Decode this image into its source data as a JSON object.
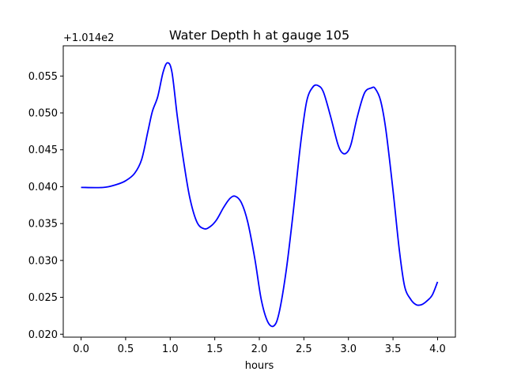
{
  "chart_data": {
    "type": "line",
    "title": "Water Depth h at gauge 105",
    "xlabel": "hours",
    "ylabel": "",
    "y_offset_label": "+1.014e2",
    "xlim": [
      -0.2,
      4.2
    ],
    "ylim": [
      0.0196,
      0.0591
    ],
    "x_ticks": [
      0.0,
      0.5,
      1.0,
      1.5,
      2.0,
      2.5,
      3.0,
      3.5,
      4.0
    ],
    "x_tick_labels": [
      "0.0",
      "0.5",
      "1.0",
      "1.5",
      "2.0",
      "2.5",
      "3.0",
      "3.5",
      "4.0"
    ],
    "y_ticks": [
      0.02,
      0.025,
      0.03,
      0.035,
      0.04,
      0.045,
      0.05,
      0.055
    ],
    "y_tick_labels": [
      "0.020",
      "0.025",
      "0.030",
      "0.035",
      "0.040",
      "0.045",
      "0.050",
      "0.055"
    ],
    "grid": false,
    "series": [
      {
        "color": "#0000ff",
        "x": [
          0.0,
          0.25,
          0.4,
          0.5,
          0.6,
          0.68,
          0.75,
          0.8,
          0.86,
          0.92,
          0.97,
          1.02,
          1.08,
          1.15,
          1.22,
          1.3,
          1.38,
          1.45,
          1.52,
          1.6,
          1.67,
          1.73,
          1.8,
          1.87,
          1.95,
          2.02,
          2.09,
          2.16,
          2.22,
          2.3,
          2.38,
          2.46,
          2.53,
          2.6,
          2.66,
          2.72,
          2.8,
          2.88,
          2.93,
          2.98,
          3.03,
          3.1,
          3.18,
          3.26,
          3.3,
          3.36,
          3.42,
          3.5,
          3.57,
          3.63,
          3.7,
          3.76,
          3.82,
          3.88,
          3.94,
          4.0
        ],
        "y": [
          0.0399,
          0.0399,
          0.0403,
          0.0408,
          0.0418,
          0.0437,
          0.0475,
          0.0502,
          0.0522,
          0.0555,
          0.0568,
          0.0555,
          0.0495,
          0.0435,
          0.0385,
          0.0352,
          0.0343,
          0.0346,
          0.0355,
          0.0372,
          0.0384,
          0.0387,
          0.0378,
          0.0352,
          0.0302,
          0.0248,
          0.0218,
          0.0211,
          0.0228,
          0.0285,
          0.0365,
          0.0455,
          0.0515,
          0.0535,
          0.0537,
          0.0528,
          0.0495,
          0.0458,
          0.0446,
          0.0446,
          0.0458,
          0.0495,
          0.0527,
          0.0534,
          0.0533,
          0.0517,
          0.0477,
          0.0395,
          0.0315,
          0.0265,
          0.0247,
          0.024,
          0.024,
          0.0245,
          0.0253,
          0.0271
        ]
      }
    ]
  }
}
